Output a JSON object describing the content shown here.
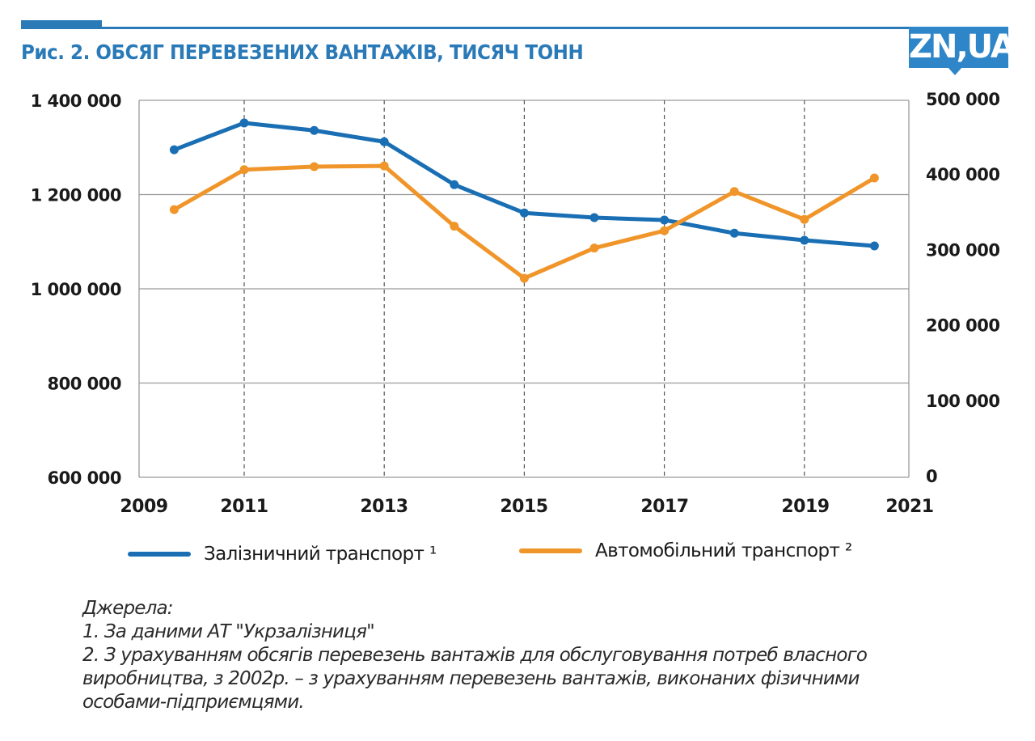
{
  "header": {
    "title": "Рис. 2. ОБСЯГ ПЕРЕВЕЗЕНИХ ВАНТАЖІВ, ТИСЯЧ ТОНН",
    "logo_text": "ZN,UA",
    "accent_color": "#2a7ab8"
  },
  "chart_data": {
    "type": "line",
    "title": "Рис. 2. ОБСЯГ ПЕРЕВЕЗЕНИХ ВАНТАЖІВ, ТИСЯЧ ТОНН",
    "x": [
      2010,
      2011,
      2012,
      2013,
      2014,
      2015,
      2016,
      2017,
      2018,
      2019,
      2020
    ],
    "x_ticks": [
      "2009",
      "2011",
      "2013",
      "2015",
      "2017",
      "2019",
      "2021"
    ],
    "xlim": [
      2009,
      2021
    ],
    "y_left": {
      "ylim": [
        600000,
        1400000
      ],
      "ticks": [
        1400000,
        1200000,
        1000000,
        800000,
        600000
      ],
      "tick_labels": [
        "1 400 000",
        "1 200 000",
        "1 000 000",
        "800 000",
        "600 000"
      ]
    },
    "y_right": {
      "ylim": [
        0,
        500000
      ],
      "ticks": [
        500000,
        400000,
        300000,
        200000,
        100000,
        0
      ],
      "tick_labels": [
        "500 000",
        "400 000",
        "300 000",
        "200 000",
        "100 000",
        "0"
      ]
    },
    "grid": "horizontal solid at left-axis ticks, vertical dashed at 2011, 2013, 2015, 2017, 2019",
    "series": [
      {
        "name": "Залізничний транспорт ¹",
        "axis": "left",
        "color": "#1a6fb4",
        "values": [
          1295000,
          1352000,
          1336000,
          1312000,
          1221000,
          1161000,
          1151000,
          1146000,
          1118000,
          1103000,
          1091000
        ]
      },
      {
        "name": "Автомобільний транспорт ²",
        "axis": "right",
        "color": "#f0952a",
        "values": [
          355000,
          408000,
          412000,
          413000,
          333000,
          264000,
          304000,
          327000,
          379000,
          342000,
          397000
        ]
      }
    ],
    "legend_position": "bottom"
  },
  "legend": {
    "items": [
      {
        "label": "Залізничний транспорт ¹",
        "color": "#1a6fb4"
      },
      {
        "label": "Автомобільний транспорт ²",
        "color": "#f0952a"
      }
    ]
  },
  "sources": {
    "heading": "Джерела:",
    "lines": [
      "1. За даними АТ \"Укрзалізниця\"",
      "2. З урахуванням обсягів перевезень вантажів для обслуговування потреб власного",
      "виробництва, з 2002р. – з урахуванням перевезень вантажів, виконаних фізичними",
      "особами-підприємцями."
    ]
  }
}
